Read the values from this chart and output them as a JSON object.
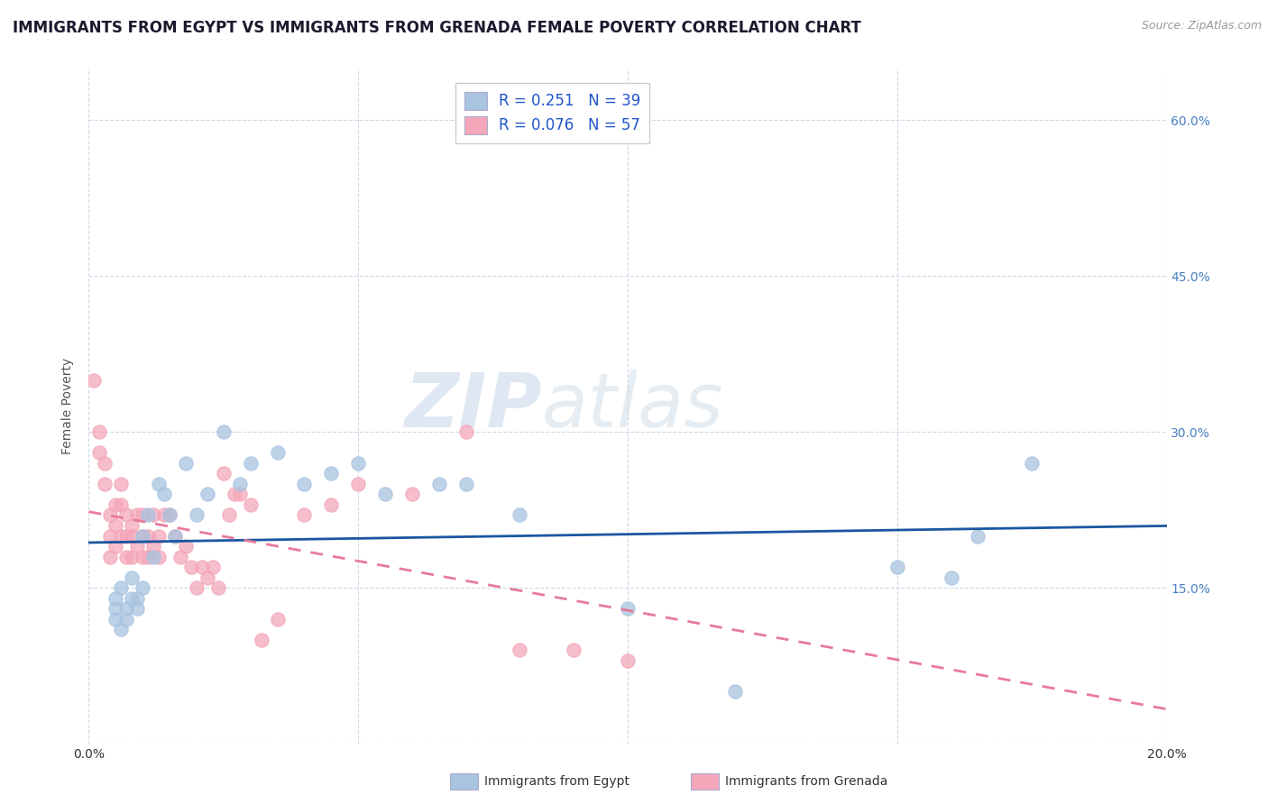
{
  "title": "IMMIGRANTS FROM EGYPT VS IMMIGRANTS FROM GRENADA FEMALE POVERTY CORRELATION CHART",
  "source": "Source: ZipAtlas.com",
  "ylabel": "Female Poverty",
  "xlim": [
    0.0,
    0.2
  ],
  "ylim": [
    0.0,
    0.65
  ],
  "egypt_R": 0.251,
  "egypt_N": 39,
  "grenada_R": 0.076,
  "grenada_N": 57,
  "egypt_color": "#a8c4e0",
  "grenada_color": "#f4a7b9",
  "egypt_line_color": "#1a56a0",
  "grenada_line_color": "#e87a9a",
  "legend_label_egypt": "Immigrants from Egypt",
  "legend_label_grenada": "Immigrants from Grenada",
  "background_color": "#ffffff",
  "grid_color": "#d0d8e8",
  "title_color": "#1a1a2e",
  "title_fontsize": 12,
  "right_tick_color": "#4a7fc4",
  "egypt_x": [
    0.005,
    0.005,
    0.005,
    0.006,
    0.006,
    0.007,
    0.007,
    0.008,
    0.008,
    0.009,
    0.009,
    0.01,
    0.01,
    0.011,
    0.012,
    0.013,
    0.014,
    0.015,
    0.016,
    0.018,
    0.02,
    0.022,
    0.025,
    0.028,
    0.03,
    0.035,
    0.04,
    0.045,
    0.05,
    0.055,
    0.065,
    0.07,
    0.08,
    0.1,
    0.12,
    0.15,
    0.16,
    0.165,
    0.175
  ],
  "egypt_y": [
    0.13,
    0.12,
    0.14,
    0.15,
    0.11,
    0.13,
    0.12,
    0.14,
    0.16,
    0.13,
    0.14,
    0.2,
    0.15,
    0.22,
    0.18,
    0.25,
    0.24,
    0.22,
    0.2,
    0.27,
    0.22,
    0.24,
    0.3,
    0.25,
    0.27,
    0.28,
    0.25,
    0.26,
    0.27,
    0.24,
    0.25,
    0.25,
    0.22,
    0.13,
    0.05,
    0.17,
    0.16,
    0.2,
    0.27
  ],
  "grenada_x": [
    0.001,
    0.002,
    0.002,
    0.003,
    0.003,
    0.004,
    0.004,
    0.004,
    0.005,
    0.005,
    0.005,
    0.006,
    0.006,
    0.006,
    0.007,
    0.007,
    0.007,
    0.008,
    0.008,
    0.008,
    0.009,
    0.009,
    0.01,
    0.01,
    0.01,
    0.011,
    0.011,
    0.012,
    0.012,
    0.013,
    0.013,
    0.014,
    0.015,
    0.016,
    0.017,
    0.018,
    0.019,
    0.02,
    0.021,
    0.022,
    0.023,
    0.024,
    0.025,
    0.026,
    0.027,
    0.028,
    0.03,
    0.032,
    0.035,
    0.04,
    0.045,
    0.05,
    0.06,
    0.07,
    0.08,
    0.09,
    0.1
  ],
  "grenada_y": [
    0.35,
    0.28,
    0.3,
    0.25,
    0.27,
    0.22,
    0.2,
    0.18,
    0.23,
    0.21,
    0.19,
    0.25,
    0.23,
    0.2,
    0.22,
    0.2,
    0.18,
    0.21,
    0.2,
    0.18,
    0.22,
    0.19,
    0.22,
    0.2,
    0.18,
    0.2,
    0.18,
    0.22,
    0.19,
    0.2,
    0.18,
    0.22,
    0.22,
    0.2,
    0.18,
    0.19,
    0.17,
    0.15,
    0.17,
    0.16,
    0.17,
    0.15,
    0.26,
    0.22,
    0.24,
    0.24,
    0.23,
    0.1,
    0.12,
    0.22,
    0.23,
    0.25,
    0.24,
    0.3,
    0.09,
    0.09,
    0.08
  ]
}
